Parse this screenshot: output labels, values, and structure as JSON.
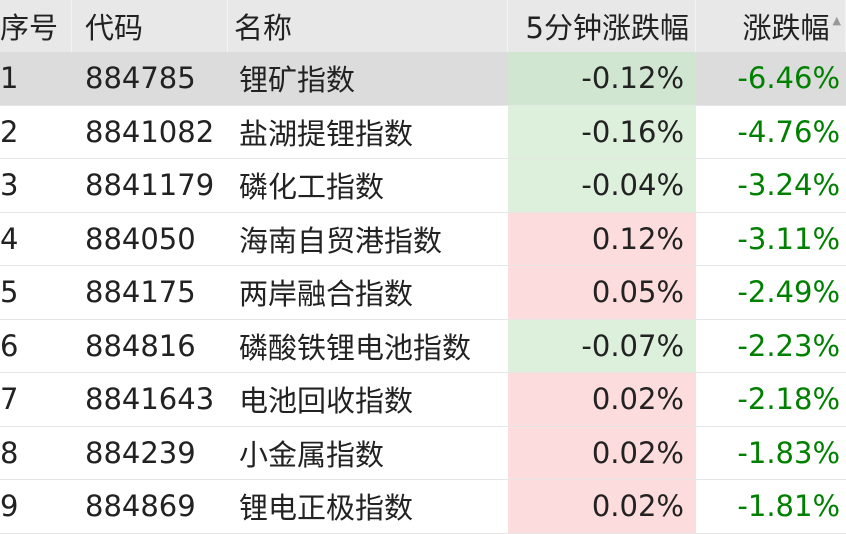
{
  "columns": {
    "index": "序号",
    "code": "代码",
    "name": "名称",
    "change_5min": "5分钟涨跌幅",
    "change": "涨跌幅",
    "sort_icon": "triangle-up"
  },
  "colors": {
    "negative_text": "#008000",
    "up_bg": "#fcdcdc",
    "down_bg": "#dcf0dc",
    "selected_bg": "#dcdcdc"
  },
  "selected_row": 1,
  "rows": [
    {
      "index": "1",
      "code": "884785",
      "name": "锂矿指数",
      "change_5min": "-0.12%",
      "change": "-6.46%"
    },
    {
      "index": "2",
      "code": "8841082",
      "name": "盐湖提锂指数",
      "change_5min": "-0.16%",
      "change": "-4.76%"
    },
    {
      "index": "3",
      "code": "8841179",
      "name": "磷化工指数",
      "change_5min": "-0.04%",
      "change": "-3.24%"
    },
    {
      "index": "4",
      "code": "884050",
      "name": "海南自贸港指数",
      "change_5min": "0.12%",
      "change": "-3.11%"
    },
    {
      "index": "5",
      "code": "884175",
      "name": "两岸融合指数",
      "change_5min": "0.05%",
      "change": "-2.49%"
    },
    {
      "index": "6",
      "code": "884816",
      "name": "磷酸铁锂电池指数",
      "change_5min": "-0.07%",
      "change": "-2.23%"
    },
    {
      "index": "7",
      "code": "8841643",
      "name": "电池回收指数",
      "change_5min": "0.02%",
      "change": "-2.18%"
    },
    {
      "index": "8",
      "code": "884239",
      "name": "小金属指数",
      "change_5min": "0.02%",
      "change": "-1.83%"
    },
    {
      "index": "9",
      "code": "884869",
      "name": "锂电正极指数",
      "change_5min": "0.02%",
      "change": "-1.81%"
    }
  ]
}
